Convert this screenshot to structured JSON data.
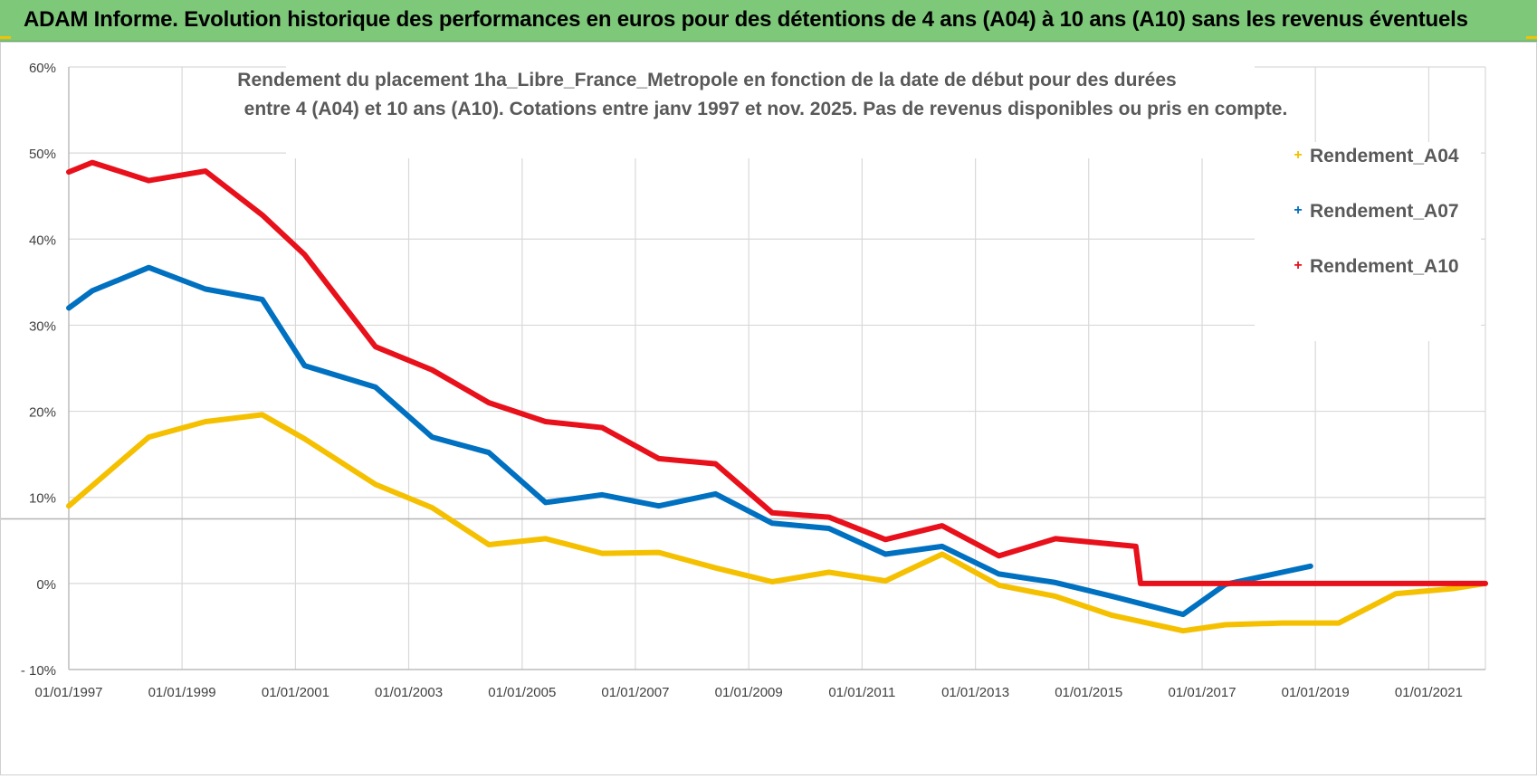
{
  "header": {
    "title": "ADAM Informe. Evolution historique des performances en euros pour des détentions de 4 ans (A04) à 10 ans (A10) sans les revenus éventuels"
  },
  "colors": {
    "header_bg": "#7ec87a",
    "A04": "#f5c000",
    "A07": "#0070c0",
    "A10": "#e8101a"
  },
  "chart_data": {
    "type": "line",
    "title_lines": [
      "Rendement du placement 1ha_Libre_France_Metropole en fonction de la date de début pour des durées",
      "entre 4 (A04) et 10 ans (A10). Cotations entre janv 1997 et nov. 2025. Pas de revenus disponibles ou pris en compte."
    ],
    "xlabel": "",
    "ylabel": "",
    "x_range": [
      "1997-01-01",
      "2022-01-01"
    ],
    "ylim": [
      -10,
      60
    ],
    "y_ticks": [
      -10,
      0,
      10,
      20,
      30,
      40,
      50,
      60
    ],
    "y_tick_labels": [
      "- 10%",
      "0%",
      "10%",
      "20%",
      "30%",
      "40%",
      "50%",
      "60%"
    ],
    "x_ticks": [
      "1997-01-01",
      "1999-01-01",
      "2001-01-01",
      "2003-01-01",
      "2005-01-01",
      "2007-01-01",
      "2009-01-01",
      "2011-01-01",
      "2013-01-01",
      "2015-01-01",
      "2017-01-01",
      "2019-01-01",
      "2021-01-01"
    ],
    "x_tick_labels": [
      "01/01/1997",
      "01/01/1999",
      "01/01/2001",
      "01/01/2003",
      "01/01/2005",
      "01/01/2007",
      "01/01/2009",
      "01/01/2011",
      "01/01/2013",
      "01/01/2015",
      "01/01/2017",
      "01/01/2019",
      "01/01/2021"
    ],
    "grid": true,
    "legend_position": "top-right",
    "series": [
      {
        "name": "Rendement_A04",
        "x": [
          "1997-01-01",
          "1998-06-01",
          "1999-06-01",
          "2000-06-01",
          "2001-03-01",
          "2002-06-01",
          "2003-06-01",
          "2004-06-01",
          "2005-06-01",
          "2006-06-01",
          "2007-06-01",
          "2008-06-01",
          "2009-06-01",
          "2010-06-01",
          "2011-06-01",
          "2012-06-01",
          "2013-06-01",
          "2014-06-01",
          "2015-06-01",
          "2016-09-01",
          "2017-06-01",
          "2018-06-01",
          "2019-06-01",
          "2020-06-01",
          "2021-06-01",
          "2022-01-01"
        ],
        "values": [
          9,
          17,
          18.8,
          19.6,
          16.8,
          11.5,
          8.8,
          4.5,
          5.2,
          3.5,
          3.6,
          1.8,
          0.2,
          1.3,
          0.3,
          3.4,
          -0.2,
          -1.5,
          -3.7,
          -5.5,
          -4.8,
          -4.6,
          -4.6,
          -1.2,
          -0.6,
          0
        ]
      },
      {
        "name": "Rendement_A07",
        "x": [
          "1997-01-01",
          "1997-06-01",
          "1998-06-01",
          "1999-06-01",
          "2000-06-01",
          "2001-03-01",
          "2002-06-01",
          "2003-06-01",
          "2004-06-01",
          "2005-06-01",
          "2006-06-01",
          "2007-06-01",
          "2008-06-01",
          "2009-06-01",
          "2010-06-01",
          "2011-06-01",
          "2012-06-01",
          "2013-06-01",
          "2014-06-01",
          "2015-06-01",
          "2016-09-01",
          "2017-06-01",
          "2018-06-01",
          "2018-12-01"
        ],
        "values": [
          32,
          34,
          36.7,
          34.2,
          33,
          25.3,
          22.8,
          17,
          15.2,
          9.4,
          10.3,
          9,
          10.4,
          7,
          6.4,
          3.4,
          4.3,
          1.1,
          0.1,
          -1.5,
          -3.6,
          -0.1,
          1.3,
          2
        ]
      },
      {
        "name": "Rendement_A10",
        "x": [
          "1997-01-01",
          "1997-06-01",
          "1998-06-01",
          "1999-06-01",
          "2000-06-01",
          "2001-03-01",
          "2002-06-01",
          "2003-06-01",
          "2004-06-01",
          "2005-06-01",
          "2006-06-01",
          "2007-06-01",
          "2008-06-01",
          "2009-06-01",
          "2010-06-01",
          "2011-06-01",
          "2012-06-01",
          "2013-06-01",
          "2014-06-01",
          "2015-11-01",
          "2015-12-01",
          "2022-01-01"
        ],
        "values": [
          47.8,
          48.9,
          46.8,
          47.9,
          42.8,
          38.2,
          27.5,
          24.8,
          21,
          18.8,
          18.1,
          14.5,
          13.9,
          8.2,
          7.7,
          5.1,
          6.7,
          3.2,
          5.2,
          4.3,
          0,
          0
        ]
      }
    ]
  }
}
